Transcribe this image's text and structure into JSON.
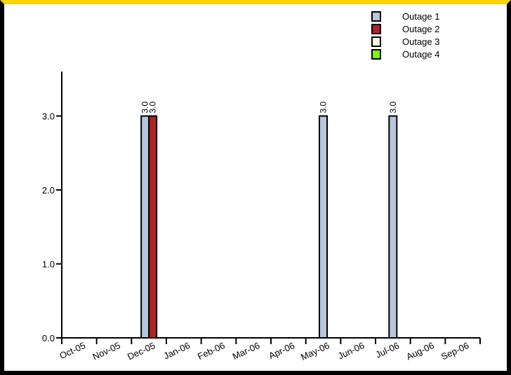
{
  "chart_data": {
    "type": "bar",
    "categories": [
      "Oct-05",
      "Nov-05",
      "Dec-05",
      "Jan-06",
      "Feb-06",
      "Mar-06",
      "Apr-06",
      "May-06",
      "Jun-06",
      "Jul-06",
      "Aug-06",
      "Sep-06"
    ],
    "series": [
      {
        "name": "Outage 1",
        "color": "#b8c8dc",
        "values": [
          0,
          0,
          3,
          0,
          0,
          0,
          0,
          3,
          0,
          3,
          0,
          0
        ]
      },
      {
        "name": "Outage 2",
        "color": "#b22222",
        "values": [
          0,
          0,
          3,
          0,
          0,
          0,
          0,
          0,
          0,
          0,
          0,
          0
        ]
      },
      {
        "name": "Outage 3",
        "color": "#fffbe0",
        "values": [
          0,
          0,
          0,
          0,
          0,
          0,
          0,
          0,
          0,
          0,
          0,
          0
        ]
      },
      {
        "name": "Outage 4",
        "color": "#7cfc00",
        "values": [
          0,
          0,
          0,
          0,
          0,
          0,
          0,
          0,
          0,
          0,
          0,
          0
        ]
      }
    ],
    "y_ticks": [
      0,
      1,
      2,
      3
    ],
    "y_tick_labels": [
      "0.0",
      "1.0",
      "2.0",
      "3.0"
    ],
    "ylim": [
      0,
      3.6
    ],
    "data_label_format": "3.0",
    "legend": {
      "position": "top-right"
    },
    "grid": false
  },
  "frame": {
    "top_color": "#ffd200",
    "border_color": "#000000"
  }
}
